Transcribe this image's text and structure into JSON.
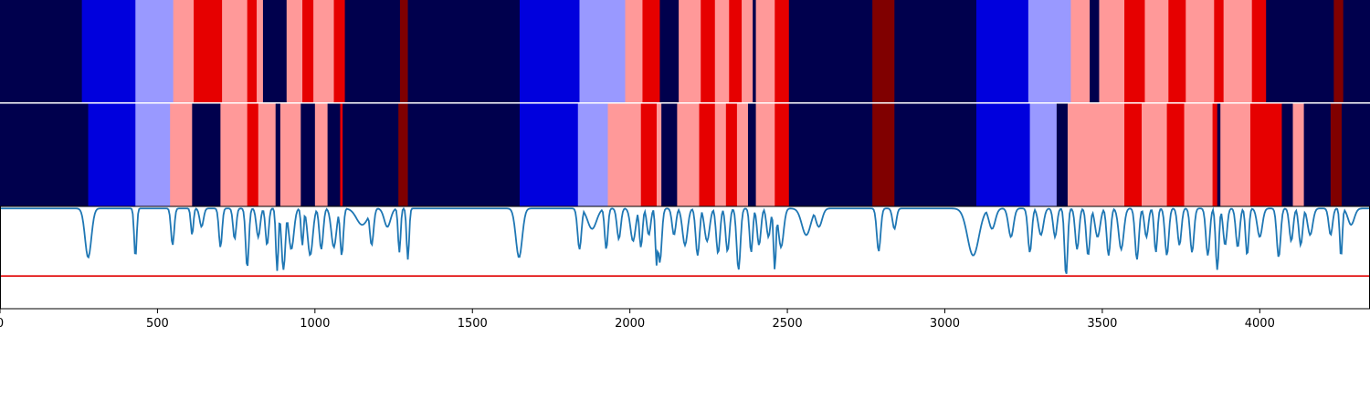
{
  "chart_data": {
    "type": "segmentation-timeline",
    "xlim": [
      0,
      4350
    ],
    "x_ticks": [
      0,
      500,
      1000,
      1500,
      2000,
      2500,
      3000,
      3500,
      4000
    ],
    "x_tick_labels": [
      "0",
      "500",
      "1000",
      "1500",
      "2000",
      "2500",
      "3000",
      "3500",
      "4000"
    ],
    "grid": false,
    "class_colors": {
      "0": "#00004d",
      "1": "#0000dd",
      "2": "#9999ff",
      "3": "#ff9999",
      "4": "#e60000",
      "5": "#800000"
    },
    "label_rows": [
      {
        "segments": [
          [
            0,
            260,
            0
          ],
          [
            260,
            430,
            1
          ],
          [
            430,
            550,
            2
          ],
          [
            550,
            615,
            3
          ],
          [
            615,
            705,
            4
          ],
          [
            705,
            785,
            3
          ],
          [
            785,
            815,
            4
          ],
          [
            815,
            835,
            3
          ],
          [
            835,
            910,
            0
          ],
          [
            910,
            960,
            3
          ],
          [
            960,
            995,
            4
          ],
          [
            995,
            1060,
            3
          ],
          [
            1060,
            1095,
            4
          ],
          [
            1095,
            1270,
            0
          ],
          [
            1270,
            1295,
            5
          ],
          [
            1295,
            1650,
            0
          ],
          [
            1650,
            1840,
            1
          ],
          [
            1840,
            1985,
            2
          ],
          [
            1985,
            2040,
            3
          ],
          [
            2040,
            2095,
            4
          ],
          [
            2095,
            2155,
            0
          ],
          [
            2155,
            2225,
            3
          ],
          [
            2225,
            2270,
            4
          ],
          [
            2270,
            2315,
            3
          ],
          [
            2315,
            2355,
            4
          ],
          [
            2355,
            2390,
            3
          ],
          [
            2390,
            2400,
            0
          ],
          [
            2400,
            2460,
            3
          ],
          [
            2460,
            2505,
            4
          ],
          [
            2505,
            2770,
            0
          ],
          [
            2770,
            2840,
            5
          ],
          [
            2840,
            3100,
            0
          ],
          [
            3100,
            3265,
            1
          ],
          [
            3265,
            3400,
            2
          ],
          [
            3400,
            3460,
            3
          ],
          [
            3460,
            3490,
            0
          ],
          [
            3490,
            3570,
            3
          ],
          [
            3570,
            3635,
            4
          ],
          [
            3635,
            3710,
            3
          ],
          [
            3710,
            3765,
            4
          ],
          [
            3765,
            3855,
            3
          ],
          [
            3855,
            3885,
            4
          ],
          [
            3885,
            3975,
            3
          ],
          [
            3975,
            4020,
            4
          ],
          [
            4020,
            4235,
            0
          ],
          [
            4235,
            4265,
            5
          ],
          [
            4265,
            4350,
            0
          ]
        ]
      },
      {
        "segments": [
          [
            0,
            280,
            0
          ],
          [
            280,
            430,
            1
          ],
          [
            430,
            540,
            2
          ],
          [
            540,
            610,
            3
          ],
          [
            610,
            700,
            0
          ],
          [
            700,
            785,
            3
          ],
          [
            785,
            820,
            4
          ],
          [
            820,
            875,
            3
          ],
          [
            875,
            890,
            0
          ],
          [
            890,
            955,
            3
          ],
          [
            955,
            1000,
            0
          ],
          [
            1000,
            1040,
            3
          ],
          [
            1040,
            1080,
            0
          ],
          [
            1080,
            1088,
            4
          ],
          [
            1088,
            1265,
            0
          ],
          [
            1265,
            1295,
            5
          ],
          [
            1295,
            1650,
            0
          ],
          [
            1650,
            1835,
            1
          ],
          [
            1835,
            1930,
            2
          ],
          [
            1930,
            2035,
            3
          ],
          [
            2035,
            2085,
            4
          ],
          [
            2085,
            2100,
            3
          ],
          [
            2100,
            2150,
            0
          ],
          [
            2150,
            2220,
            3
          ],
          [
            2220,
            2270,
            4
          ],
          [
            2270,
            2305,
            3
          ],
          [
            2305,
            2340,
            4
          ],
          [
            2340,
            2375,
            3
          ],
          [
            2375,
            2390,
            0
          ],
          [
            2390,
            2400,
            0
          ],
          [
            2400,
            2460,
            3
          ],
          [
            2460,
            2505,
            4
          ],
          [
            2505,
            2770,
            0
          ],
          [
            2770,
            2840,
            5
          ],
          [
            2840,
            3100,
            0
          ],
          [
            3100,
            3270,
            1
          ],
          [
            3270,
            3355,
            2
          ],
          [
            3355,
            3390,
            0
          ],
          [
            3390,
            3570,
            3
          ],
          [
            3570,
            3625,
            4
          ],
          [
            3625,
            3705,
            3
          ],
          [
            3705,
            3760,
            4
          ],
          [
            3760,
            3850,
            3
          ],
          [
            3850,
            3865,
            4
          ],
          [
            3865,
            3875,
            0
          ],
          [
            3875,
            3970,
            3
          ],
          [
            3970,
            4070,
            4
          ],
          [
            4070,
            4105,
            0
          ],
          [
            4105,
            4140,
            3
          ],
          [
            4140,
            4225,
            0
          ],
          [
            4225,
            4260,
            5
          ],
          [
            4260,
            4350,
            0
          ]
        ]
      }
    ],
    "signal": {
      "name": "",
      "color": "#1f77b4",
      "ylim": [
        0,
        1
      ],
      "baseline": 0.98,
      "dips": [
        [
          280,
          0.5,
          10
        ],
        [
          430,
          0.5,
          4
        ],
        [
          548,
          0.62,
          5
        ],
        [
          610,
          0.72,
          4
        ],
        [
          640,
          0.8,
          6
        ],
        [
          700,
          0.6,
          5
        ],
        [
          745,
          0.68,
          5
        ],
        [
          785,
          0.4,
          5
        ],
        [
          820,
          0.7,
          6
        ],
        [
          848,
          0.62,
          5
        ],
        [
          880,
          0.37,
          4
        ],
        [
          900,
          0.38,
          6
        ],
        [
          925,
          0.58,
          8
        ],
        [
          960,
          0.62,
          4
        ],
        [
          985,
          0.52,
          8
        ],
        [
          1020,
          0.58,
          6
        ],
        [
          1060,
          0.6,
          8
        ],
        [
          1085,
          0.52,
          5
        ],
        [
          1150,
          0.82,
          18
        ],
        [
          1180,
          0.62,
          6
        ],
        [
          1230,
          0.8,
          10
        ],
        [
          1268,
          0.55,
          4
        ],
        [
          1295,
          0.48,
          4
        ],
        [
          1648,
          0.5,
          10
        ],
        [
          1840,
          0.58,
          6
        ],
        [
          1880,
          0.78,
          14
        ],
        [
          1925,
          0.58,
          5
        ],
        [
          1965,
          0.68,
          6
        ],
        [
          2010,
          0.66,
          8
        ],
        [
          2035,
          0.6,
          5
        ],
        [
          2060,
          0.72,
          6
        ],
        [
          2085,
          0.42,
          4
        ],
        [
          2095,
          0.45,
          6
        ],
        [
          2140,
          0.72,
          6
        ],
        [
          2175,
          0.62,
          8
        ],
        [
          2215,
          0.52,
          6
        ],
        [
          2245,
          0.66,
          8
        ],
        [
          2280,
          0.54,
          6
        ],
        [
          2310,
          0.56,
          6
        ],
        [
          2345,
          0.38,
          6
        ],
        [
          2385,
          0.55,
          5
        ],
        [
          2410,
          0.62,
          6
        ],
        [
          2440,
          0.7,
          6
        ],
        [
          2460,
          0.38,
          4
        ],
        [
          2480,
          0.6,
          8
        ],
        [
          2560,
          0.72,
          14
        ],
        [
          2600,
          0.8,
          10
        ],
        [
          2790,
          0.56,
          6
        ],
        [
          2840,
          0.78,
          6
        ],
        [
          3090,
          0.52,
          18
        ],
        [
          3150,
          0.78,
          10
        ],
        [
          3210,
          0.7,
          8
        ],
        [
          3270,
          0.55,
          6
        ],
        [
          3305,
          0.72,
          8
        ],
        [
          3350,
          0.7,
          6
        ],
        [
          3385,
          0.32,
          5
        ],
        [
          3420,
          0.58,
          6
        ],
        [
          3455,
          0.52,
          6
        ],
        [
          3485,
          0.7,
          8
        ],
        [
          3520,
          0.52,
          6
        ],
        [
          3560,
          0.58,
          8
        ],
        [
          3610,
          0.48,
          6
        ],
        [
          3640,
          0.7,
          6
        ],
        [
          3670,
          0.55,
          5
        ],
        [
          3705,
          0.52,
          6
        ],
        [
          3745,
          0.62,
          6
        ],
        [
          3785,
          0.55,
          6
        ],
        [
          3835,
          0.52,
          6
        ],
        [
          3865,
          0.38,
          5
        ],
        [
          3890,
          0.62,
          6
        ],
        [
          3930,
          0.6,
          6
        ],
        [
          3960,
          0.52,
          5
        ],
        [
          4000,
          0.7,
          8
        ],
        [
          4060,
          0.5,
          6
        ],
        [
          4100,
          0.66,
          6
        ],
        [
          4130,
          0.62,
          6
        ],
        [
          4160,
          0.72,
          8
        ],
        [
          4225,
          0.72,
          6
        ],
        [
          4258,
          0.5,
          4
        ],
        [
          4290,
          0.82,
          10
        ]
      ]
    },
    "threshold": {
      "y": 0.32,
      "color": "#e00000"
    }
  }
}
